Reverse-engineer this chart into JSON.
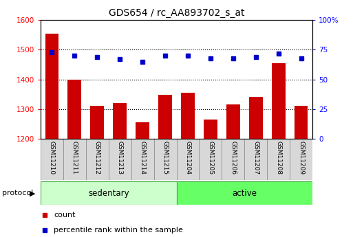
{
  "title": "GDS654 / rc_AA893702_s_at",
  "samples": [
    "GSM11210",
    "GSM11211",
    "GSM11212",
    "GSM11213",
    "GSM11214",
    "GSM11215",
    "GSM11204",
    "GSM11205",
    "GSM11206",
    "GSM11207",
    "GSM11208",
    "GSM11209"
  ],
  "counts": [
    1555,
    1400,
    1310,
    1320,
    1255,
    1348,
    1355,
    1265,
    1315,
    1340,
    1455,
    1310
  ],
  "percentile_ranks": [
    73,
    70,
    69,
    67,
    65,
    70,
    70,
    68,
    68,
    69,
    72,
    68
  ],
  "sed_indices": [
    0,
    1,
    2,
    3,
    4,
    5
  ],
  "act_indices": [
    6,
    7,
    8,
    9,
    10,
    11
  ],
  "group_colors": [
    "#ccffcc",
    "#66ff66"
  ],
  "ylim_left": [
    1200,
    1600
  ],
  "ylim_right": [
    0,
    100
  ],
  "yticks_left": [
    1200,
    1300,
    1400,
    1500,
    1600
  ],
  "yticks_right": [
    0,
    25,
    50,
    75,
    100
  ],
  "bar_color": "#cc0000",
  "dot_color": "#0000cc",
  "bar_width": 0.6,
  "background_color": "#ffffff",
  "legend_count_label": "count",
  "legend_percentile_label": "percentile rank within the sample",
  "protocol_label": "protocol",
  "title_fontsize": 10,
  "tick_fontsize": 7.5,
  "sample_fontsize": 6.5,
  "label_fontsize": 8
}
